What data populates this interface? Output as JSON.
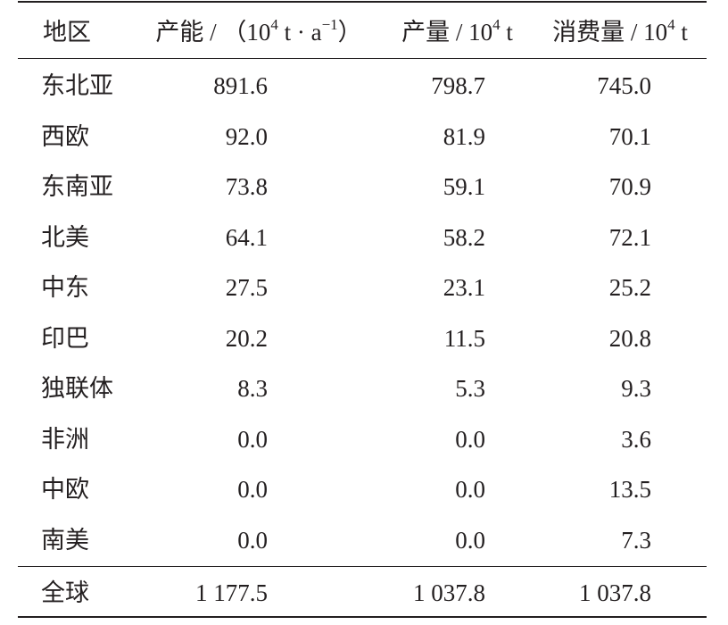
{
  "headers": {
    "region": "地区",
    "capacity_pre": "产能 / （10",
    "capacity_exp": "4",
    "capacity_mid": " t · a",
    "capacity_exp2": "−1",
    "capacity_post": "）",
    "production_pre": "产量 / 10",
    "production_exp": "4",
    "production_post": " t",
    "consumption_pre": "消费量 / 10",
    "consumption_exp": "4",
    "consumption_post": " t"
  },
  "rows": [
    {
      "region": "东北亚",
      "capacity": "891.6",
      "production": "798.7",
      "consumption": "745.0"
    },
    {
      "region": "西欧",
      "capacity": "92.0",
      "production": "81.9",
      "consumption": "70.1"
    },
    {
      "region": "东南亚",
      "capacity": "73.8",
      "production": "59.1",
      "consumption": "70.9"
    },
    {
      "region": "北美",
      "capacity": "64.1",
      "production": "58.2",
      "consumption": "72.1"
    },
    {
      "region": "中东",
      "capacity": "27.5",
      "production": "23.1",
      "consumption": "25.2"
    },
    {
      "region": "印巴",
      "capacity": "20.2",
      "production": "11.5",
      "consumption": "20.8"
    },
    {
      "region": "独联体",
      "capacity": "8.3",
      "production": "5.3",
      "consumption": "9.3"
    },
    {
      "region": "非洲",
      "capacity": "0.0",
      "production": "0.0",
      "consumption": "3.6"
    },
    {
      "region": "中欧",
      "capacity": "0.0",
      "production": "0.0",
      "consumption": "13.5"
    },
    {
      "region": "南美",
      "capacity": "0.0",
      "production": "0.0",
      "consumption": "7.3"
    }
  ],
  "total": {
    "region": "全球",
    "capacity": "1 177.5",
    "production": "1 037.8",
    "consumption": "1 037.8"
  }
}
